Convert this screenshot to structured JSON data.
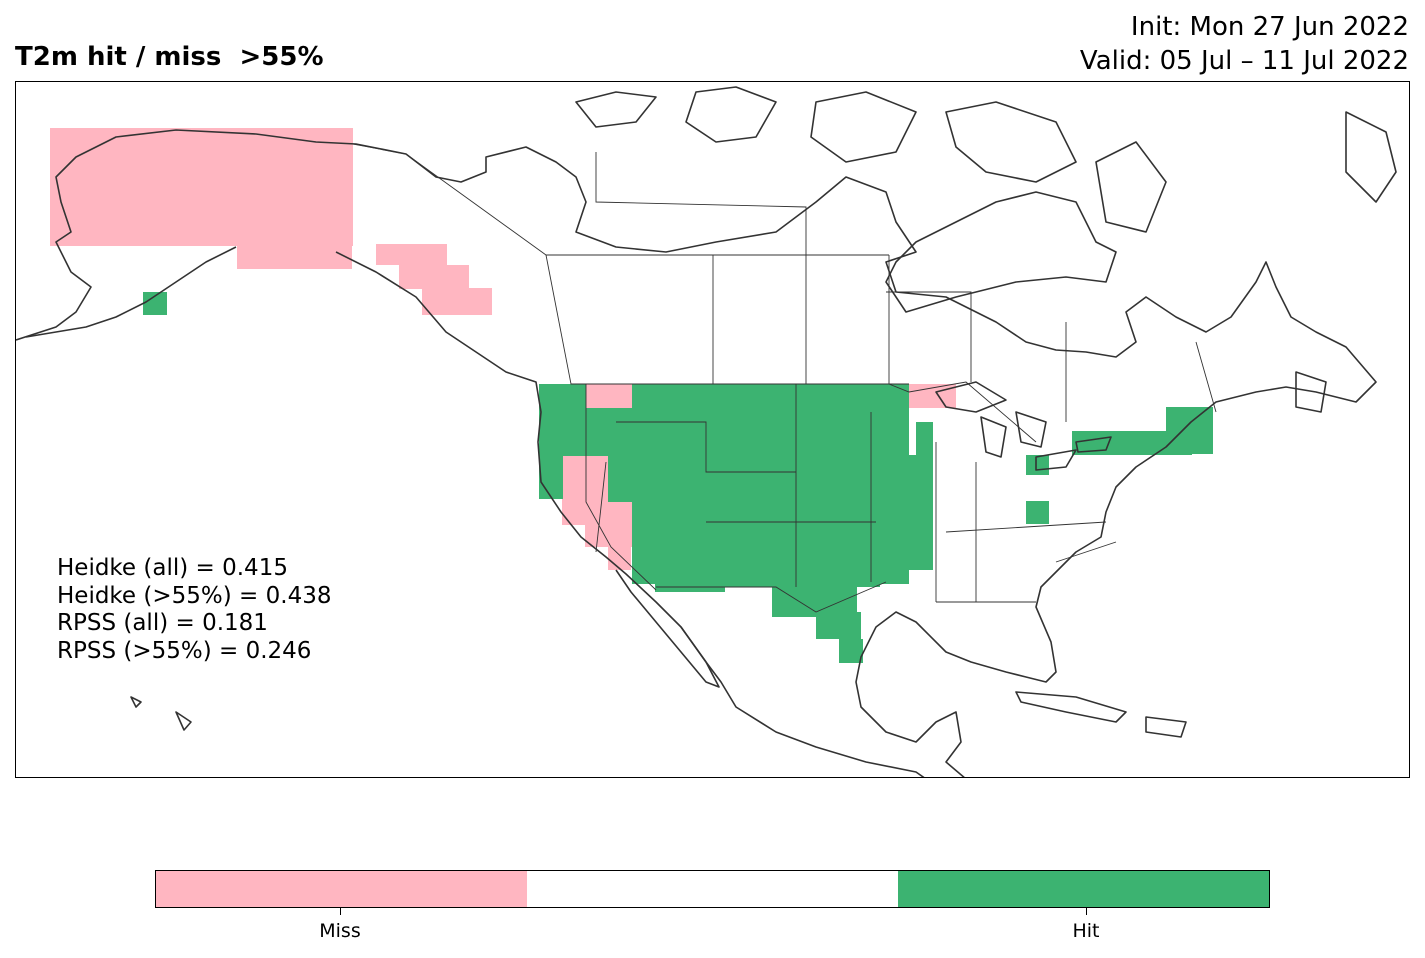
{
  "title": {
    "left": "T2m hit / miss  >55%",
    "init": "Init: Mon 27 Jun 2022",
    "valid": "Valid: 05 Jul – 11 Jul 2022"
  },
  "stats": [
    "Heidke (all) = 0.415",
    "Heidke (>55%) = 0.438",
    "RPSS (all) = 0.181",
    "RPSS (>55%) = 0.246"
  ],
  "colors": {
    "miss": "#ffb6c1",
    "neutral": "#ffffff",
    "hit": "#3cb371",
    "coast": "#333333"
  },
  "legend": {
    "miss_label": "Miss",
    "hit_label": "Hit"
  },
  "map_regions": {
    "miss": [
      "Alaska interior",
      "Alaska panhandle",
      "Washington/Idaho border",
      "California/Nevada",
      "Northern Minnesota/Lake Superior"
    ],
    "hit": [
      "Aleutian cell",
      "Western and central United States",
      "Texas",
      "Northeast United States",
      "Ohio Valley cells"
    ]
  }
}
